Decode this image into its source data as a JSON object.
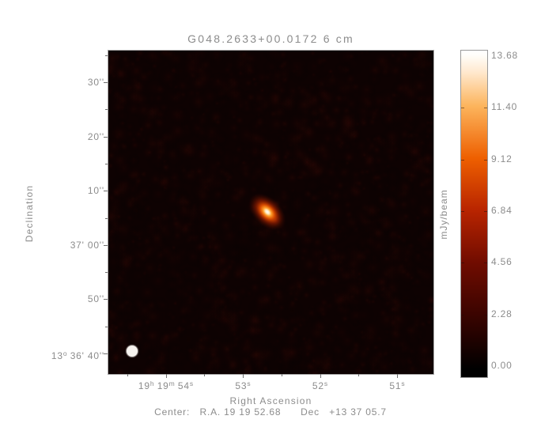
{
  "chart_data": {
    "type": "heatmap",
    "title": "G048.2633+00.0172 6 cm",
    "xlabel": "Right Ascension",
    "ylabel": "Declination",
    "colorbar_label": "mJy/beam",
    "colorbar_ticks": [
      "0.00",
      "2.28",
      "4.56",
      "6.84",
      "9.12",
      "11.40",
      "13.68"
    ],
    "intensity_range": [
      0.0,
      13.68
    ],
    "intensity_units": "mJy/beam",
    "x_tick_labels": [
      "19^h 19^m 54^s",
      "53^s",
      "52^s",
      "51^s"
    ],
    "y_tick_labels": [
      "30''",
      "20''",
      "10''",
      "37' 00''",
      "50''",
      "13^o 36' 40''"
    ],
    "caption": "Center:   R.A. 19 19 52.68      Dec   +13 37 05.7",
    "colormap_stops": [
      "#000000",
      "#3a0400",
      "#700c00",
      "#b82400",
      "#ee5f00",
      "#fcb45c",
      "#ffffff"
    ],
    "background": "dark mottled red-black radio noise",
    "source": {
      "description": "single compact bright source near field center, elongated NW-SE",
      "peak_value": 13.68,
      "ra": "19 19 52.68",
      "dec": "+13 37 05.7"
    },
    "beam_indicator": "filled white circle in lower-left corner of image"
  }
}
